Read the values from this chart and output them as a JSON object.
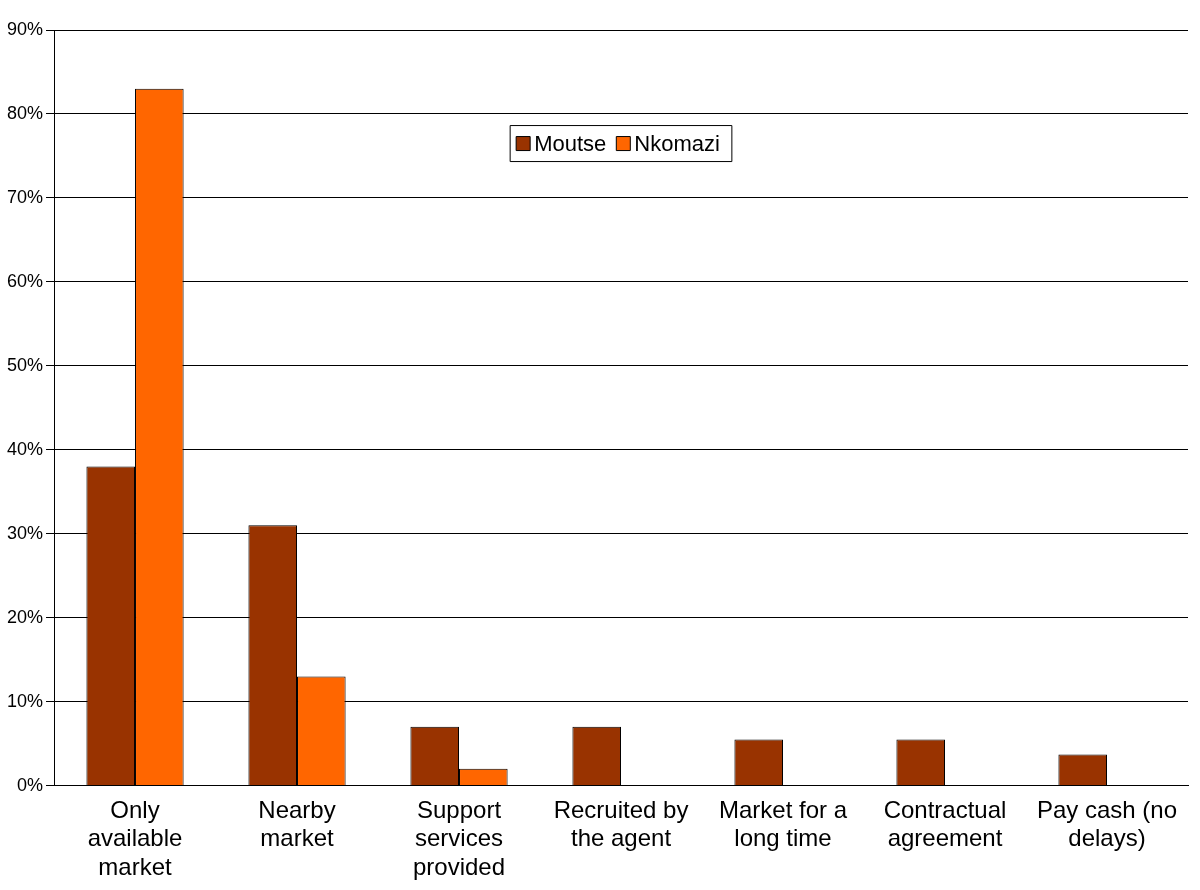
{
  "chart_data": {
    "type": "bar",
    "categories": [
      "Only available market",
      "Nearby market",
      "Support services provided",
      "Recruited by the agent",
      "Market for a long time",
      "Contractual agreement",
      "Pay cash (no delays)"
    ],
    "series": [
      {
        "name": "Moutse",
        "color": "#993300",
        "values": [
          38,
          31,
          7,
          7,
          5.5,
          5.5,
          3.7
        ]
      },
      {
        "name": "Nkomazi",
        "color": "#ff6600",
        "values": [
          83,
          13,
          2,
          null,
          null,
          null,
          null
        ]
      }
    ],
    "ylim": [
      0,
      90
    ],
    "yticks": [
      {
        "value": 0,
        "label": "0%"
      },
      {
        "value": 10,
        "label": "10%"
      },
      {
        "value": 20,
        "label": "20%"
      },
      {
        "value": 30,
        "label": "30%"
      },
      {
        "value": 40,
        "label": "40%"
      },
      {
        "value": 50,
        "label": "50%"
      },
      {
        "value": 60,
        "label": "60%"
      },
      {
        "value": 70,
        "label": "70%"
      },
      {
        "value": 80,
        "label": "80%"
      },
      {
        "value": 90,
        "label": "90%"
      }
    ],
    "grid": "y",
    "legend": "top"
  }
}
